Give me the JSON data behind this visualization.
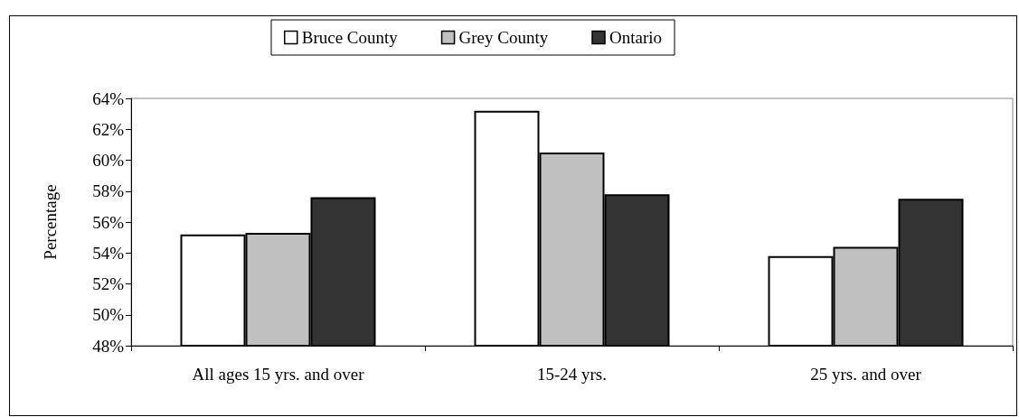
{
  "chart_data": {
    "type": "bar",
    "ylabel": "Percentage",
    "categories": [
      "All ages 15 yrs. and over",
      "15-24 yrs.",
      "25 yrs. and over"
    ],
    "series": [
      {
        "name": "Bruce County",
        "color": "#ffffff",
        "values": [
          55.2,
          63.2,
          53.8
        ]
      },
      {
        "name": "Grey County",
        "color": "#c0c0c0",
        "values": [
          55.3,
          60.5,
          54.4
        ]
      },
      {
        "name": "Ontario",
        "color": "#333333",
        "values": [
          57.6,
          57.8,
          57.5
        ]
      }
    ],
    "ylim": [
      48,
      64
    ],
    "yticks": [
      {
        "value": 48,
        "label": "48%"
      },
      {
        "value": 50,
        "label": "50%"
      },
      {
        "value": 52,
        "label": "52%"
      },
      {
        "value": 54,
        "label": "54%"
      },
      {
        "value": 56,
        "label": "56%"
      },
      {
        "value": 58,
        "label": "58%"
      },
      {
        "value": 60,
        "label": "60%"
      },
      {
        "value": 62,
        "label": "62%"
      },
      {
        "value": 64,
        "label": "64%"
      }
    ],
    "grid": false,
    "legend": "top"
  }
}
